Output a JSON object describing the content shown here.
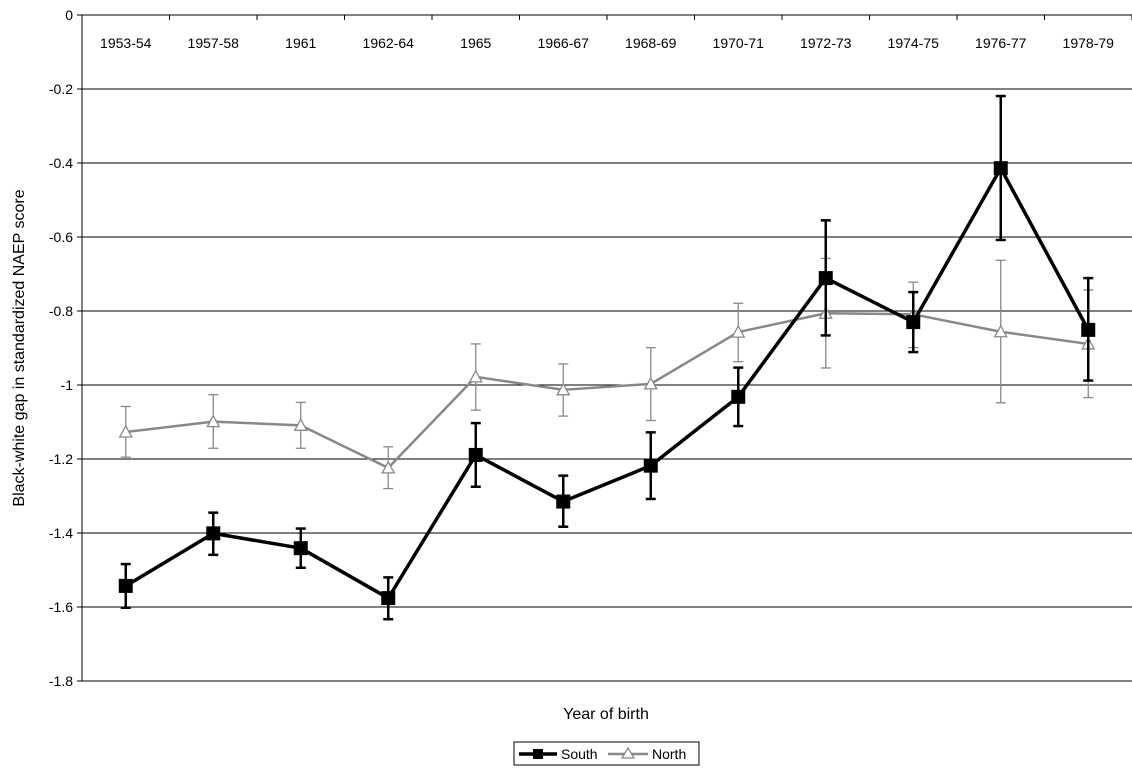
{
  "chart_data": {
    "type": "line",
    "title": "",
    "xlabel": "Year of birth",
    "ylabel": "Black-white gap in standardized NAEP score",
    "categories": [
      "1953-54",
      "1957-58",
      "1961",
      "1962-64",
      "1965",
      "1966-67",
      "1968-69",
      "1970-71",
      "1972-73",
      "1974-75",
      "1976-77",
      "1978-79"
    ],
    "ylim": [
      -1.8,
      0
    ],
    "yticks": [
      0,
      -0.2,
      -0.4,
      -0.6,
      -0.8,
      -1,
      -1.2,
      -1.4,
      -1.6,
      -1.8
    ],
    "ytick_labels": [
      "0",
      "-0.2",
      "-0.4",
      "-0.6",
      "-0.8",
      "-1",
      "-1.2",
      "-1.4",
      "-1.6",
      "-1.8"
    ],
    "category_labels_position": "top",
    "grid": "horizontal",
    "legend_position": "bottom-center",
    "series": [
      {
        "name": "South",
        "color": "#000000",
        "marker": "filled-square",
        "values": [
          -1.543,
          -1.401,
          -1.441,
          -1.576,
          -1.189,
          -1.315,
          -1.218,
          -1.032,
          -0.711,
          -0.83,
          -0.414,
          -0.851
        ],
        "error_low": [
          -1.602,
          -1.459,
          -1.494,
          -1.633,
          -1.275,
          -1.383,
          -1.308,
          -1.111,
          -0.866,
          -0.911,
          -0.608,
          -0.988
        ],
        "error_high": [
          -1.484,
          -1.345,
          -1.388,
          -1.52,
          -1.103,
          -1.245,
          -1.128,
          -0.953,
          -0.555,
          -0.749,
          -0.219,
          -0.711
        ]
      },
      {
        "name": "North",
        "color": "#888888",
        "marker": "open-triangle",
        "values": [
          -1.127,
          -1.099,
          -1.109,
          -1.224,
          -0.978,
          -1.013,
          -0.997,
          -0.857,
          -0.806,
          -0.809,
          -0.856,
          -0.889
        ],
        "error_low": [
          -1.195,
          -1.171,
          -1.171,
          -1.28,
          -1.068,
          -1.084,
          -1.096,
          -0.937,
          -0.954,
          -0.899,
          -1.048,
          -1.034
        ],
        "error_high": [
          -1.058,
          -1.026,
          -1.047,
          -1.167,
          -0.889,
          -0.943,
          -0.899,
          -0.779,
          -0.658,
          -0.722,
          -0.663,
          -0.743
        ]
      }
    ]
  }
}
